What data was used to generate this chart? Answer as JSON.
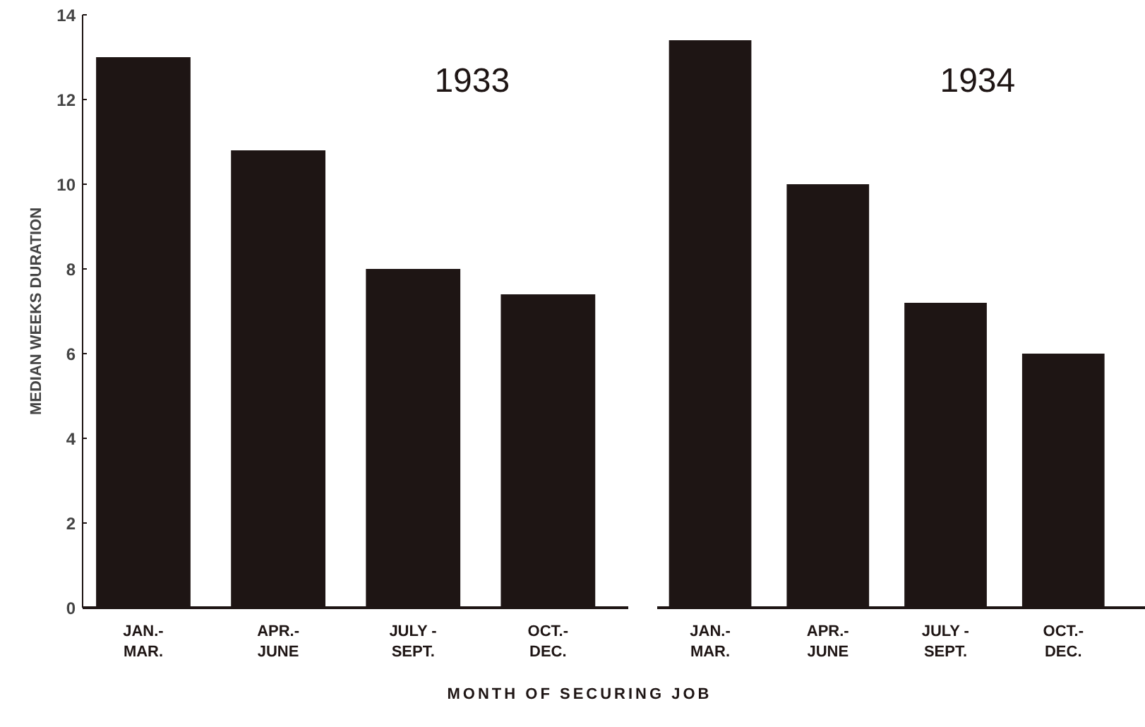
{
  "chart_data": [
    {
      "type": "bar",
      "title": "1933",
      "ylabel": "MEDIAN WEEKS DURATION",
      "xlabel": "MONTH OF SECURING JOB",
      "categories": [
        "JAN.-\nMAR.",
        "APR.-\nJUNE",
        "JULY -\nSEPT.",
        "OCT.-\nDEC."
      ],
      "values": [
        13.0,
        10.8,
        8.0,
        7.4
      ],
      "color": "#1e1514",
      "ylim": [
        0,
        14
      ],
      "yticks": [
        0,
        2,
        4,
        6,
        8,
        10,
        12,
        14
      ],
      "grid": false
    },
    {
      "type": "bar",
      "title": "1934",
      "categories": [
        "JAN.-\nMAR.",
        "APR.-\nJUNE",
        "JULY -\nSEPT.",
        "OCT.-\nDEC."
      ],
      "values": [
        13.4,
        10.0,
        7.2,
        6.0
      ],
      "color": "#1e1514",
      "ylim": [
        0,
        14
      ],
      "yticks": [
        0,
        2,
        4,
        6,
        8,
        10,
        12,
        14
      ],
      "grid": false,
      "tick_labels": "x"
    }
  ]
}
